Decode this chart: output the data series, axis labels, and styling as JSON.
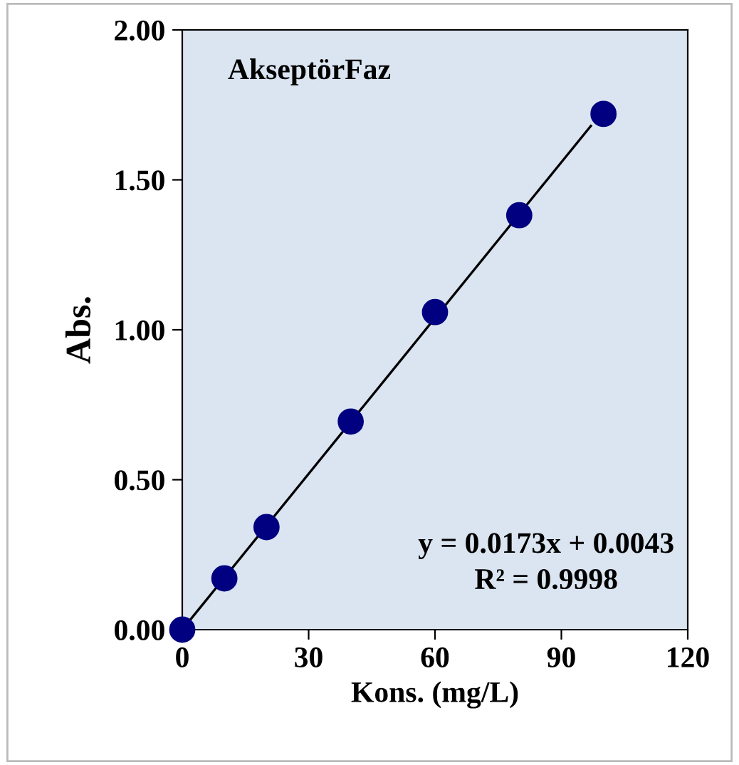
{
  "chart_data": {
    "type": "scatter",
    "title": "AkseptörFaz",
    "xlabel": "Kons. (mg/L)",
    "ylabel": "Abs.",
    "xlim": [
      0,
      120
    ],
    "xticks": [
      0,
      30,
      60,
      90,
      120
    ],
    "ylim": [
      0,
      2
    ],
    "yticks": [
      {
        "value": 0,
        "label": "0.00"
      },
      {
        "value": 0.5,
        "label": "0.50"
      },
      {
        "value": 1,
        "label": "1.00"
      },
      {
        "value": 1.5,
        "label": "1.50"
      },
      {
        "value": 2,
        "label": "2.00"
      }
    ],
    "series": [
      {
        "color": "#000080",
        "marker": "circle",
        "x": [
          0,
          10,
          20,
          40,
          60,
          80,
          100
        ],
        "values": [
          0,
          0.171,
          0.342,
          0.694,
          1.059,
          1.382,
          1.72
        ]
      },
      {
        "type": "line",
        "color": "#000000",
        "x": [
          0,
          97
        ],
        "values": [
          0.0,
          1.68
        ]
      }
    ],
    "annotations": [
      "y = 0.0173x + 0.0043",
      "R² = 0.9998"
    ],
    "grid": false,
    "legend": false
  }
}
